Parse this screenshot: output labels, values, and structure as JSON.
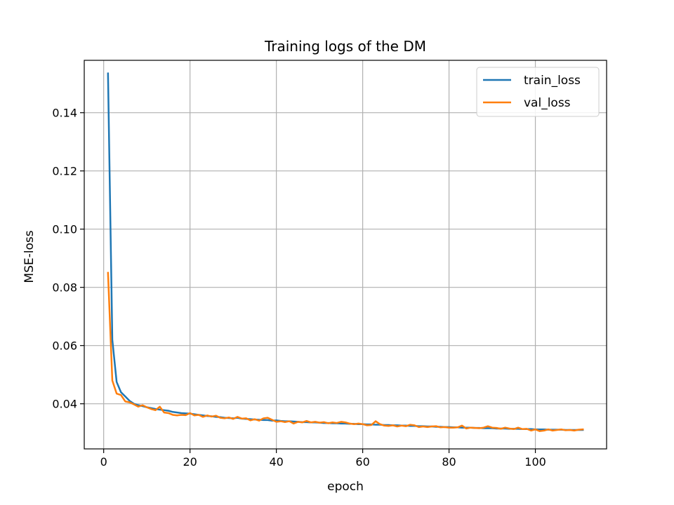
{
  "chart_data": {
    "type": "line",
    "title": "Training logs of the DM",
    "xlabel": "epoch",
    "ylabel": "MSE-loss",
    "xlim": [
      -4.5,
      116.5
    ],
    "ylim": [
      0.0245,
      0.158
    ],
    "xticks": [
      0,
      20,
      40,
      60,
      80,
      100
    ],
    "yticks": [
      0.04,
      0.06,
      0.08,
      0.1,
      0.12,
      0.14
    ],
    "ytick_labels": [
      "0.04",
      "0.06",
      "0.08",
      "0.10",
      "0.12",
      "0.14"
    ],
    "grid": true,
    "legend_position": "top-right",
    "series": [
      {
        "name": "train_loss",
        "color": "#1f77b4",
        "x": [
          1,
          2,
          3,
          4,
          5,
          6,
          7,
          8,
          9,
          10,
          11,
          12,
          13,
          14,
          15,
          16,
          17,
          18,
          19,
          20,
          21,
          22,
          23,
          24,
          25,
          26,
          27,
          28,
          29,
          30,
          31,
          32,
          33,
          34,
          35,
          36,
          37,
          38,
          39,
          40,
          41,
          42,
          43,
          44,
          45,
          46,
          47,
          48,
          49,
          50,
          51,
          52,
          53,
          54,
          55,
          56,
          57,
          58,
          59,
          60,
          61,
          62,
          63,
          64,
          65,
          66,
          67,
          68,
          69,
          70,
          71,
          72,
          73,
          74,
          75,
          76,
          77,
          78,
          79,
          80,
          81,
          82,
          83,
          84,
          85,
          86,
          87,
          88,
          89,
          90,
          91,
          92,
          93,
          94,
          95,
          96,
          97,
          98,
          99,
          100,
          101,
          102,
          103,
          104,
          105,
          106,
          107,
          108,
          109,
          110,
          111
        ],
        "values": [
          0.1535,
          0.062,
          0.0475,
          0.044,
          0.0425,
          0.041,
          0.04,
          0.0395,
          0.0392,
          0.0388,
          0.0385,
          0.0382,
          0.038,
          0.0378,
          0.0376,
          0.0372,
          0.037,
          0.0368,
          0.0367,
          0.0366,
          0.0364,
          0.0362,
          0.036,
          0.0358,
          0.0357,
          0.0355,
          0.0354,
          0.0352,
          0.0351,
          0.035,
          0.0352,
          0.0349,
          0.0348,
          0.0347,
          0.0346,
          0.0345,
          0.0344,
          0.0344,
          0.0342,
          0.0343,
          0.0341,
          0.034,
          0.034,
          0.0339,
          0.0338,
          0.0337,
          0.0337,
          0.0336,
          0.0336,
          0.0335,
          0.0334,
          0.0334,
          0.0333,
          0.0333,
          0.0332,
          0.0332,
          0.0331,
          0.0331,
          0.033,
          0.033,
          0.0329,
          0.0329,
          0.0328,
          0.0328,
          0.0327,
          0.0327,
          0.0326,
          0.0326,
          0.0325,
          0.0325,
          0.0324,
          0.0324,
          0.0323,
          0.0323,
          0.0322,
          0.0322,
          0.0321,
          0.0321,
          0.032,
          0.032,
          0.0319,
          0.0319,
          0.0318,
          0.0318,
          0.0318,
          0.0317,
          0.0317,
          0.0316,
          0.0316,
          0.0316,
          0.0315,
          0.0315,
          0.0315,
          0.0314,
          0.0314,
          0.0314,
          0.0313,
          0.0313,
          0.0313,
          0.0312,
          0.0312,
          0.0312,
          0.0311,
          0.0311,
          0.0311,
          0.0311,
          0.031,
          0.031,
          0.031,
          0.031,
          0.031
        ]
      },
      {
        "name": "val_loss",
        "color": "#ff7f0e",
        "x": [
          1,
          2,
          3,
          4,
          5,
          6,
          7,
          8,
          9,
          10,
          11,
          12,
          13,
          14,
          15,
          16,
          17,
          18,
          19,
          20,
          21,
          22,
          23,
          24,
          25,
          26,
          27,
          28,
          29,
          30,
          31,
          32,
          33,
          34,
          35,
          36,
          37,
          38,
          39,
          40,
          41,
          42,
          43,
          44,
          45,
          46,
          47,
          48,
          49,
          50,
          51,
          52,
          53,
          54,
          55,
          56,
          57,
          58,
          59,
          60,
          61,
          62,
          63,
          64,
          65,
          66,
          67,
          68,
          69,
          70,
          71,
          72,
          73,
          74,
          75,
          76,
          77,
          78,
          79,
          80,
          81,
          82,
          83,
          84,
          85,
          86,
          87,
          88,
          89,
          90,
          91,
          92,
          93,
          94,
          95,
          96,
          97,
          98,
          99,
          100,
          101,
          102,
          103,
          104,
          105,
          106,
          107,
          108,
          109,
          110,
          111
        ],
        "values": [
          0.085,
          0.048,
          0.0435,
          0.043,
          0.0408,
          0.0405,
          0.0398,
          0.039,
          0.0395,
          0.0388,
          0.0382,
          0.0378,
          0.039,
          0.037,
          0.0368,
          0.0362,
          0.036,
          0.0362,
          0.0361,
          0.0368,
          0.036,
          0.0362,
          0.0355,
          0.036,
          0.0356,
          0.0359,
          0.0352,
          0.035,
          0.0353,
          0.0348,
          0.0355,
          0.0349,
          0.035,
          0.0343,
          0.0347,
          0.0342,
          0.035,
          0.0352,
          0.0345,
          0.0338,
          0.034,
          0.0337,
          0.034,
          0.0332,
          0.0338,
          0.0336,
          0.0341,
          0.0336,
          0.0338,
          0.0335,
          0.0337,
          0.0333,
          0.0336,
          0.0334,
          0.0338,
          0.0336,
          0.0332,
          0.033,
          0.0332,
          0.033,
          0.0326,
          0.0327,
          0.034,
          0.033,
          0.0325,
          0.0324,
          0.0326,
          0.0322,
          0.0325,
          0.0323,
          0.0328,
          0.0326,
          0.032,
          0.0322,
          0.032,
          0.0322,
          0.0323,
          0.0319,
          0.032,
          0.0318,
          0.0318,
          0.0319,
          0.0325,
          0.0315,
          0.0318,
          0.0317,
          0.0316,
          0.0318,
          0.0323,
          0.0318,
          0.0317,
          0.0314,
          0.0318,
          0.0315,
          0.0313,
          0.0318,
          0.0313,
          0.0314,
          0.0308,
          0.0312,
          0.0306,
          0.0308,
          0.0312,
          0.0308,
          0.031,
          0.0312,
          0.0309,
          0.031,
          0.0308,
          0.0311,
          0.0312
        ]
      }
    ]
  }
}
